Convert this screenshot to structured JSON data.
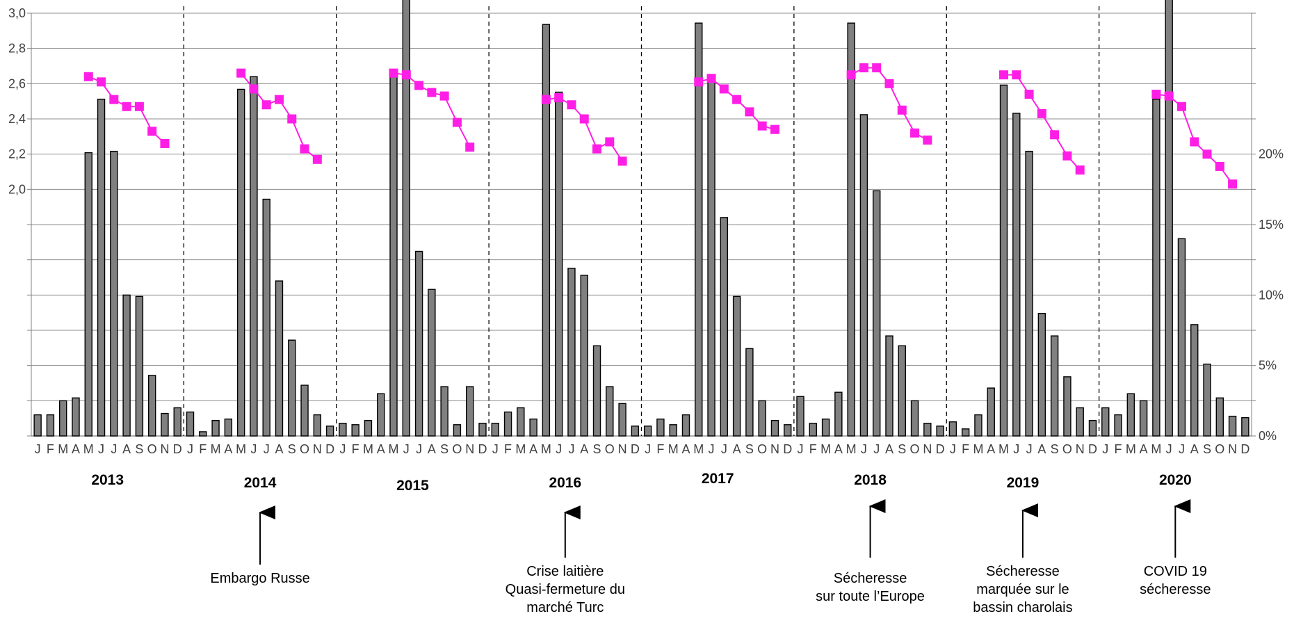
{
  "chart_data": {
    "type": "bar",
    "title": "",
    "xlabel": "",
    "month_labels": [
      "J",
      "F",
      "M",
      "A",
      "M",
      "J",
      "J",
      "A",
      "S",
      "O",
      "N",
      "D"
    ],
    "years": [
      "2013",
      "2014",
      "2015",
      "2016",
      "2017",
      "2018",
      "2019",
      "2020"
    ],
    "y_left": {
      "ticks": [
        "3,0",
        "2,8",
        "2,6",
        "2,4",
        "2,2",
        "2,0"
      ],
      "ylim": [
        2.0,
        3.0
      ]
    },
    "y_right": {
      "ticks": [
        "0%",
        "5%",
        "10%",
        "15%",
        "20%"
      ],
      "ylim": [
        0,
        30
      ]
    },
    "grid": true,
    "series": [
      {
        "kind": "bar",
        "axis": "right",
        "color": "#808080",
        "values": [
          [
            1.5,
            1.5,
            2.5,
            2.7,
            20.1,
            23.9,
            20.2,
            10.0,
            9.9,
            4.3,
            1.6,
            2.0
          ],
          [
            1.7,
            0.3,
            1.1,
            1.2,
            24.6,
            25.5,
            16.8,
            11.0,
            6.8,
            3.6,
            1.5,
            0.7
          ],
          [
            0.9,
            0.8,
            1.1,
            3.0,
            25.5,
            31.6,
            13.1,
            10.4,
            3.5,
            0.8,
            3.5,
            0.9
          ],
          [
            0.9,
            1.7,
            2.0,
            1.2,
            29.2,
            24.4,
            11.9,
            11.4,
            6.4,
            3.5,
            2.3,
            0.7
          ],
          [
            0.7,
            1.2,
            0.8,
            1.5,
            29.3,
            25.6,
            15.5,
            9.9,
            6.2,
            2.5,
            1.1,
            0.8
          ],
          [
            2.8,
            0.9,
            1.2,
            3.1,
            29.3,
            22.8,
            17.4,
            7.1,
            6.4,
            2.5,
            0.9,
            0.7
          ],
          [
            1.0,
            0.5,
            1.5,
            3.4,
            24.9,
            22.9,
            20.2,
            8.7,
            7.1,
            4.2,
            2.0,
            1.1
          ],
          [
            2.0,
            1.5,
            3.0,
            2.5,
            23.9,
            31.5,
            14.0,
            7.9,
            5.1,
            2.7,
            1.4,
            1.3
          ]
        ]
      },
      {
        "kind": "line",
        "axis": "left",
        "color": "#ff1ee6",
        "start_month_index": 4,
        "values": [
          [
            2.64,
            2.61,
            2.51,
            2.47,
            2.47,
            2.33,
            2.26
          ],
          [
            2.66,
            2.57,
            2.48,
            2.51,
            2.4,
            2.23,
            2.17
          ],
          [
            2.66,
            2.65,
            2.59,
            2.55,
            2.53,
            2.38,
            2.24
          ],
          [
            2.51,
            2.52,
            2.48,
            2.4,
            2.23,
            2.27,
            2.16
          ],
          [
            2.61,
            2.63,
            2.57,
            2.51,
            2.44,
            2.36,
            2.34
          ],
          [
            2.65,
            2.69,
            2.69,
            2.6,
            2.45,
            2.32,
            2.28
          ],
          [
            2.65,
            2.65,
            2.54,
            2.43,
            2.31,
            2.19,
            2.11
          ],
          [
            2.54,
            2.53,
            2.47,
            2.27,
            2.2,
            2.13,
            2.03
          ]
        ]
      }
    ],
    "annotations": [
      {
        "year": "2014",
        "lines": [
          "Embargo Russe"
        ]
      },
      {
        "year": "2016",
        "lines": [
          "Crise laitière",
          "Quasi-fermeture du",
          "marché Turc"
        ]
      },
      {
        "year": "2018",
        "lines": [
          "Sécheresse",
          "sur toute l’Europe"
        ]
      },
      {
        "year": "2019",
        "lines": [
          "Sécheresse",
          "marquée sur le",
          "bassin charolais"
        ]
      },
      {
        "year": "2020",
        "lines": [
          "COVID 19",
          "sécheresse"
        ]
      }
    ]
  }
}
